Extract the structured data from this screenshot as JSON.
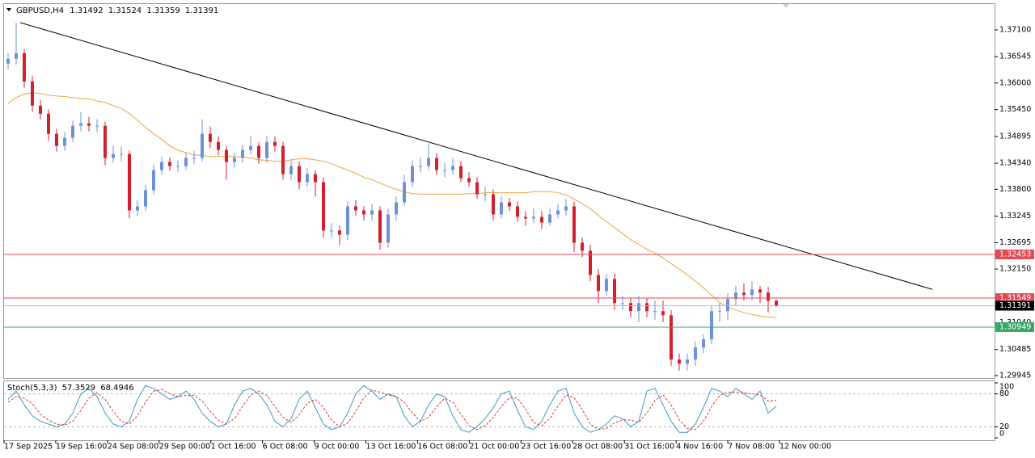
{
  "chart_data": [
    {
      "type": "candlestick",
      "symbol": "GBPUSD,H4",
      "up_color": "#6d92d8",
      "down_color": "#d3202f",
      "ohlc": [
        [
          1.364,
          1.3662,
          1.3628,
          1.365
        ],
        [
          1.365,
          1.3725,
          1.3638,
          1.36616
        ],
        [
          1.36616,
          1.367,
          1.359,
          1.36032
        ],
        [
          1.36032,
          1.3615,
          1.354,
          1.35532
        ],
        [
          1.35532,
          1.3565,
          1.3525,
          1.35365
        ],
        [
          1.35365,
          1.3545,
          1.348,
          1.34948
        ],
        [
          1.34948,
          1.3505,
          1.3458,
          1.34698
        ],
        [
          1.34698,
          1.3498,
          1.346,
          1.34865
        ],
        [
          1.34865,
          1.3522,
          1.3478,
          1.35115
        ],
        [
          1.35115,
          1.354,
          1.35,
          1.35165
        ],
        [
          1.35165,
          1.353,
          1.35,
          1.35115
        ],
        [
          1.35115,
          1.3525,
          1.3498,
          1.35115
        ],
        [
          1.35115,
          1.352,
          1.343,
          1.34448
        ],
        [
          1.34448,
          1.347,
          1.3435,
          1.34531
        ],
        [
          1.34531,
          1.3468,
          1.3438,
          1.34531
        ],
        [
          1.34531,
          1.346,
          1.332,
          1.33364
        ],
        [
          1.33364,
          1.3358,
          1.3325,
          1.33447
        ],
        [
          1.33447,
          1.339,
          1.3335,
          1.33781
        ],
        [
          1.33781,
          1.343,
          1.337,
          1.34198
        ],
        [
          1.34198,
          1.3448,
          1.341,
          1.34364
        ],
        [
          1.34364,
          1.3446,
          1.3418,
          1.34281
        ],
        [
          1.34281,
          1.344,
          1.3415,
          1.34281
        ],
        [
          1.34281,
          1.3456,
          1.342,
          1.34448
        ],
        [
          1.34448,
          1.346,
          1.3432,
          1.34448
        ],
        [
          1.34448,
          1.3525,
          1.3438,
          1.34948
        ],
        [
          1.34948,
          1.351,
          1.3465,
          1.34781
        ],
        [
          1.34781,
          1.349,
          1.345,
          1.34615
        ],
        [
          1.34615,
          1.347,
          1.34,
          1.34364
        ],
        [
          1.34364,
          1.3456,
          1.3425,
          1.34448
        ],
        [
          1.34448,
          1.3472,
          1.3435,
          1.34615
        ],
        [
          1.34615,
          1.349,
          1.3452,
          1.34698
        ],
        [
          1.34698,
          1.3478,
          1.3433,
          1.34448
        ],
        [
          1.34448,
          1.349,
          1.3435,
          1.34781
        ],
        [
          1.34781,
          1.349,
          1.3458,
          1.34698
        ],
        [
          1.34698,
          1.3478,
          1.34,
          1.34114
        ],
        [
          1.34114,
          1.344,
          1.34,
          1.34281
        ],
        [
          1.34281,
          1.3438,
          1.338,
          1.33947
        ],
        [
          1.33947,
          1.3425,
          1.3385,
          1.34114
        ],
        [
          1.34114,
          1.342,
          1.3365,
          1.33947
        ],
        [
          1.33947,
          1.3405,
          1.328,
          1.32947
        ],
        [
          1.32947,
          1.331,
          1.328,
          1.32947
        ],
        [
          1.32947,
          1.3305,
          1.3265,
          1.32863
        ],
        [
          1.32863,
          1.3355,
          1.3275,
          1.33447
        ],
        [
          1.33447,
          1.3358,
          1.3325,
          1.33364
        ],
        [
          1.33364,
          1.3345,
          1.3315,
          1.3328
        ],
        [
          1.3328,
          1.335,
          1.3315,
          1.33364
        ],
        [
          1.33364,
          1.3345,
          1.3255,
          1.32696
        ],
        [
          1.32696,
          1.334,
          1.326,
          1.3328
        ],
        [
          1.3328,
          1.3365,
          1.3315,
          1.3353
        ],
        [
          1.3353,
          1.341,
          1.3345,
          1.33947
        ],
        [
          1.33947,
          1.344,
          1.3385,
          1.34281
        ],
        [
          1.34281,
          1.3445,
          1.3415,
          1.34281
        ],
        [
          1.34281,
          1.3475,
          1.342,
          1.34448
        ],
        [
          1.34448,
          1.3455,
          1.341,
          1.34198
        ],
        [
          1.34198,
          1.3435,
          1.3405,
          1.34198
        ],
        [
          1.34198,
          1.3445,
          1.341,
          1.34281
        ],
        [
          1.34281,
          1.3438,
          1.3395,
          1.34031
        ],
        [
          1.34031,
          1.3415,
          1.3385,
          1.33947
        ],
        [
          1.33947,
          1.3405,
          1.336,
          1.33697
        ],
        [
          1.33697,
          1.3385,
          1.3355,
          1.33697
        ],
        [
          1.33697,
          1.338,
          1.3315,
          1.3328
        ],
        [
          1.3328,
          1.3365,
          1.332,
          1.3353
        ],
        [
          1.3353,
          1.3362,
          1.3335,
          1.33447
        ],
        [
          1.33447,
          1.3355,
          1.3313,
          1.3323
        ],
        [
          1.3323,
          1.3335,
          1.3305,
          1.33197
        ],
        [
          1.33197,
          1.334,
          1.331,
          1.3323
        ],
        [
          1.3323,
          1.3335,
          1.3298,
          1.33113
        ],
        [
          1.33113,
          1.334,
          1.3305,
          1.3328
        ],
        [
          1.3328,
          1.335,
          1.332,
          1.33364
        ],
        [
          1.33364,
          1.336,
          1.3325,
          1.33447
        ],
        [
          1.33447,
          1.3355,
          1.325,
          1.32696
        ],
        [
          1.32696,
          1.328,
          1.324,
          1.3253
        ],
        [
          1.3253,
          1.3265,
          1.319,
          1.32029
        ],
        [
          1.32029,
          1.3215,
          1.3145,
          1.31696
        ],
        [
          1.31696,
          1.3205,
          1.316,
          1.31946
        ],
        [
          1.31946,
          1.3205,
          1.313,
          1.31445
        ],
        [
          1.31445,
          1.316,
          1.313,
          1.31445
        ],
        [
          1.31445,
          1.3155,
          1.3115,
          1.31279
        ],
        [
          1.31279,
          1.316,
          1.3105,
          1.31445
        ],
        [
          1.31445,
          1.3155,
          1.3115,
          1.31279
        ],
        [
          1.31279,
          1.315,
          1.311,
          1.31279
        ],
        [
          1.31279,
          1.315,
          1.3105,
          1.31195
        ],
        [
          1.31195,
          1.313,
          1.3015,
          1.30278
        ],
        [
          1.30278,
          1.304,
          1.3005,
          1.30194
        ],
        [
          1.30194,
          1.304,
          1.3005,
          1.30278
        ],
        [
          1.30278,
          1.3065,
          1.3015,
          1.30528
        ],
        [
          1.30528,
          1.308,
          1.304,
          1.30695
        ],
        [
          1.30695,
          1.314,
          1.306,
          1.31279
        ],
        [
          1.31279,
          1.3145,
          1.3105,
          1.31279
        ],
        [
          1.31279,
          1.3165,
          1.311,
          1.31529
        ],
        [
          1.31529,
          1.318,
          1.314,
          1.31662
        ],
        [
          1.31662,
          1.3185,
          1.315,
          1.31612
        ],
        [
          1.31612,
          1.319,
          1.315,
          1.31729
        ],
        [
          1.31729,
          1.318,
          1.3145,
          1.31662
        ],
        [
          1.31662,
          1.3178,
          1.3125,
          1.31492
        ],
        [
          1.31492,
          1.31524,
          1.31359,
          1.31391
        ]
      ],
      "ma": {
        "color": "#f0a23c",
        "values": [
          1.3558,
          1.357,
          1.3577,
          1.358,
          1.3578,
          1.3575,
          1.3573,
          1.3572,
          1.357,
          1.3568,
          1.3567,
          1.3563,
          1.356,
          1.3553,
          1.3547,
          1.3537,
          1.3523,
          1.3508,
          1.3495,
          1.3483,
          1.347,
          1.3461,
          1.3456,
          1.3451,
          1.345,
          1.3448,
          1.3448,
          1.3448,
          1.3448,
          1.3446,
          1.3445,
          1.3441,
          1.344,
          1.3438,
          1.3438,
          1.3441,
          1.3443,
          1.3443,
          1.3441,
          1.3438,
          1.3433,
          1.3426,
          1.342,
          1.3413,
          1.3405,
          1.34,
          1.3393,
          1.3386,
          1.338,
          1.3375,
          1.3371,
          1.337,
          1.337,
          1.337,
          1.337,
          1.337,
          1.337,
          1.3371,
          1.3371,
          1.3373,
          1.3373,
          1.3373,
          1.3373,
          1.3373,
          1.3373,
          1.3375,
          1.3375,
          1.3375,
          1.3373,
          1.3368,
          1.336,
          1.335,
          1.334,
          1.3326,
          1.3313,
          1.3301,
          1.3288,
          1.3276,
          1.3266,
          1.3256,
          1.3248,
          1.3238,
          1.3226,
          1.3215,
          1.3203,
          1.319,
          1.3176,
          1.3161,
          1.3146,
          1.3136,
          1.313,
          1.3125,
          1.3121,
          1.3118,
          1.3116,
          1.3116
        ]
      },
      "trendline": {
        "color": "#000000",
        "values": [
          1.3725,
          1.3173
        ]
      },
      "levels": [
        {
          "value": 1.32453,
          "color": "#e04a55"
        },
        {
          "value": 1.31549,
          "color": "#e04a55"
        },
        {
          "value": 1.30949,
          "color": "#35a866"
        }
      ],
      "bid_color": "#b8b8b8",
      "ylim": [
        1.29895,
        1.37634
      ],
      "yticks": [
        {
          "value": 1.371,
          "label": "1.37100"
        },
        1.36545,
        {
          "value": 1.36,
          "label": "1.36000"
        },
        {
          "value": 1.3545,
          "label": "1.35450"
        },
        1.34895,
        {
          "value": 1.3434,
          "label": "1.34340"
        },
        {
          "value": 1.338,
          "label": "1.33800"
        },
        1.33245,
        1.32695,
        {
          "value": 1.3215,
          "label": "1.32150"
        },
        {
          "value": 1.3104,
          "label": "1.31040"
        },
        1.30485,
        1.29945
      ],
      "x_labels": [
        "17 Sep 2025",
        "19 Sep 16:00",
        "24 Sep 08:00",
        "29 Sep 00:00",
        "1 Oct 16:00",
        "6 Oct 08:00",
        "9 Oct 00:00",
        "13 Oct 16:00",
        "16 Oct 08:00",
        "21 Oct 00:00",
        "23 Oct 16:00",
        "28 Oct 08:00",
        "31 Oct 16:00",
        "4 Nov 16:00",
        "7 Nov 08:00",
        "12 Nov 00:00"
      ]
    },
    {
      "type": "stochastic",
      "title": "Stoch(5,3,3)",
      "main": {
        "color": "#3a9cc6",
        "values": [
          70,
          85,
          60,
          40,
          30,
          25,
          20,
          25,
          45,
          80,
          90,
          75,
          45,
          25,
          20,
          30,
          70,
          95,
          90,
          80,
          70,
          75,
          85,
          70,
          45,
          30,
          20,
          25,
          60,
          85,
          90,
          80,
          60,
          30,
          20,
          35,
          70,
          85,
          55,
          25,
          15,
          20,
          45,
          80,
          95,
          85,
          70,
          80,
          75,
          40,
          20,
          30,
          60,
          80,
          75,
          40,
          15,
          10,
          20,
          35,
          55,
          80,
          85,
          50,
          20,
          15,
          30,
          60,
          85,
          90,
          45,
          20,
          10,
          15,
          25,
          40,
          35,
          20,
          30,
          85,
          90,
          60,
          30,
          10,
          10,
          25,
          55,
          90,
          85,
          75,
          90,
          80,
          70,
          85,
          45,
          57.3529
        ]
      },
      "signal": {
        "color": "#e03535",
        "values": [
          65,
          75,
          72,
          62,
          43,
          32,
          25,
          23,
          30,
          50,
          72,
          82,
          70,
          48,
          30,
          25,
          40,
          65,
          85,
          88,
          80,
          75,
          77,
          77,
          67,
          48,
          32,
          25,
          35,
          57,
          78,
          85,
          77,
          57,
          37,
          28,
          42,
          63,
          70,
          55,
          32,
          20,
          27,
          48,
          73,
          87,
          83,
          78,
          75,
          65,
          45,
          30,
          37,
          57,
          72,
          65,
          43,
          22,
          15,
          22,
          37,
          57,
          73,
          72,
          52,
          28,
          22,
          35,
          58,
          78,
          73,
          52,
          25,
          15,
          17,
          27,
          33,
          32,
          28,
          45,
          68,
          78,
          60,
          33,
          17,
          15,
          30,
          57,
          77,
          83,
          83,
          82,
          80,
          78,
          67,
          68.4946
        ]
      },
      "levels": [
        20,
        80
      ],
      "ylim": [
        0,
        100
      ],
      "yticks": [
        0,
        20,
        80,
        100
      ]
    }
  ]
}
